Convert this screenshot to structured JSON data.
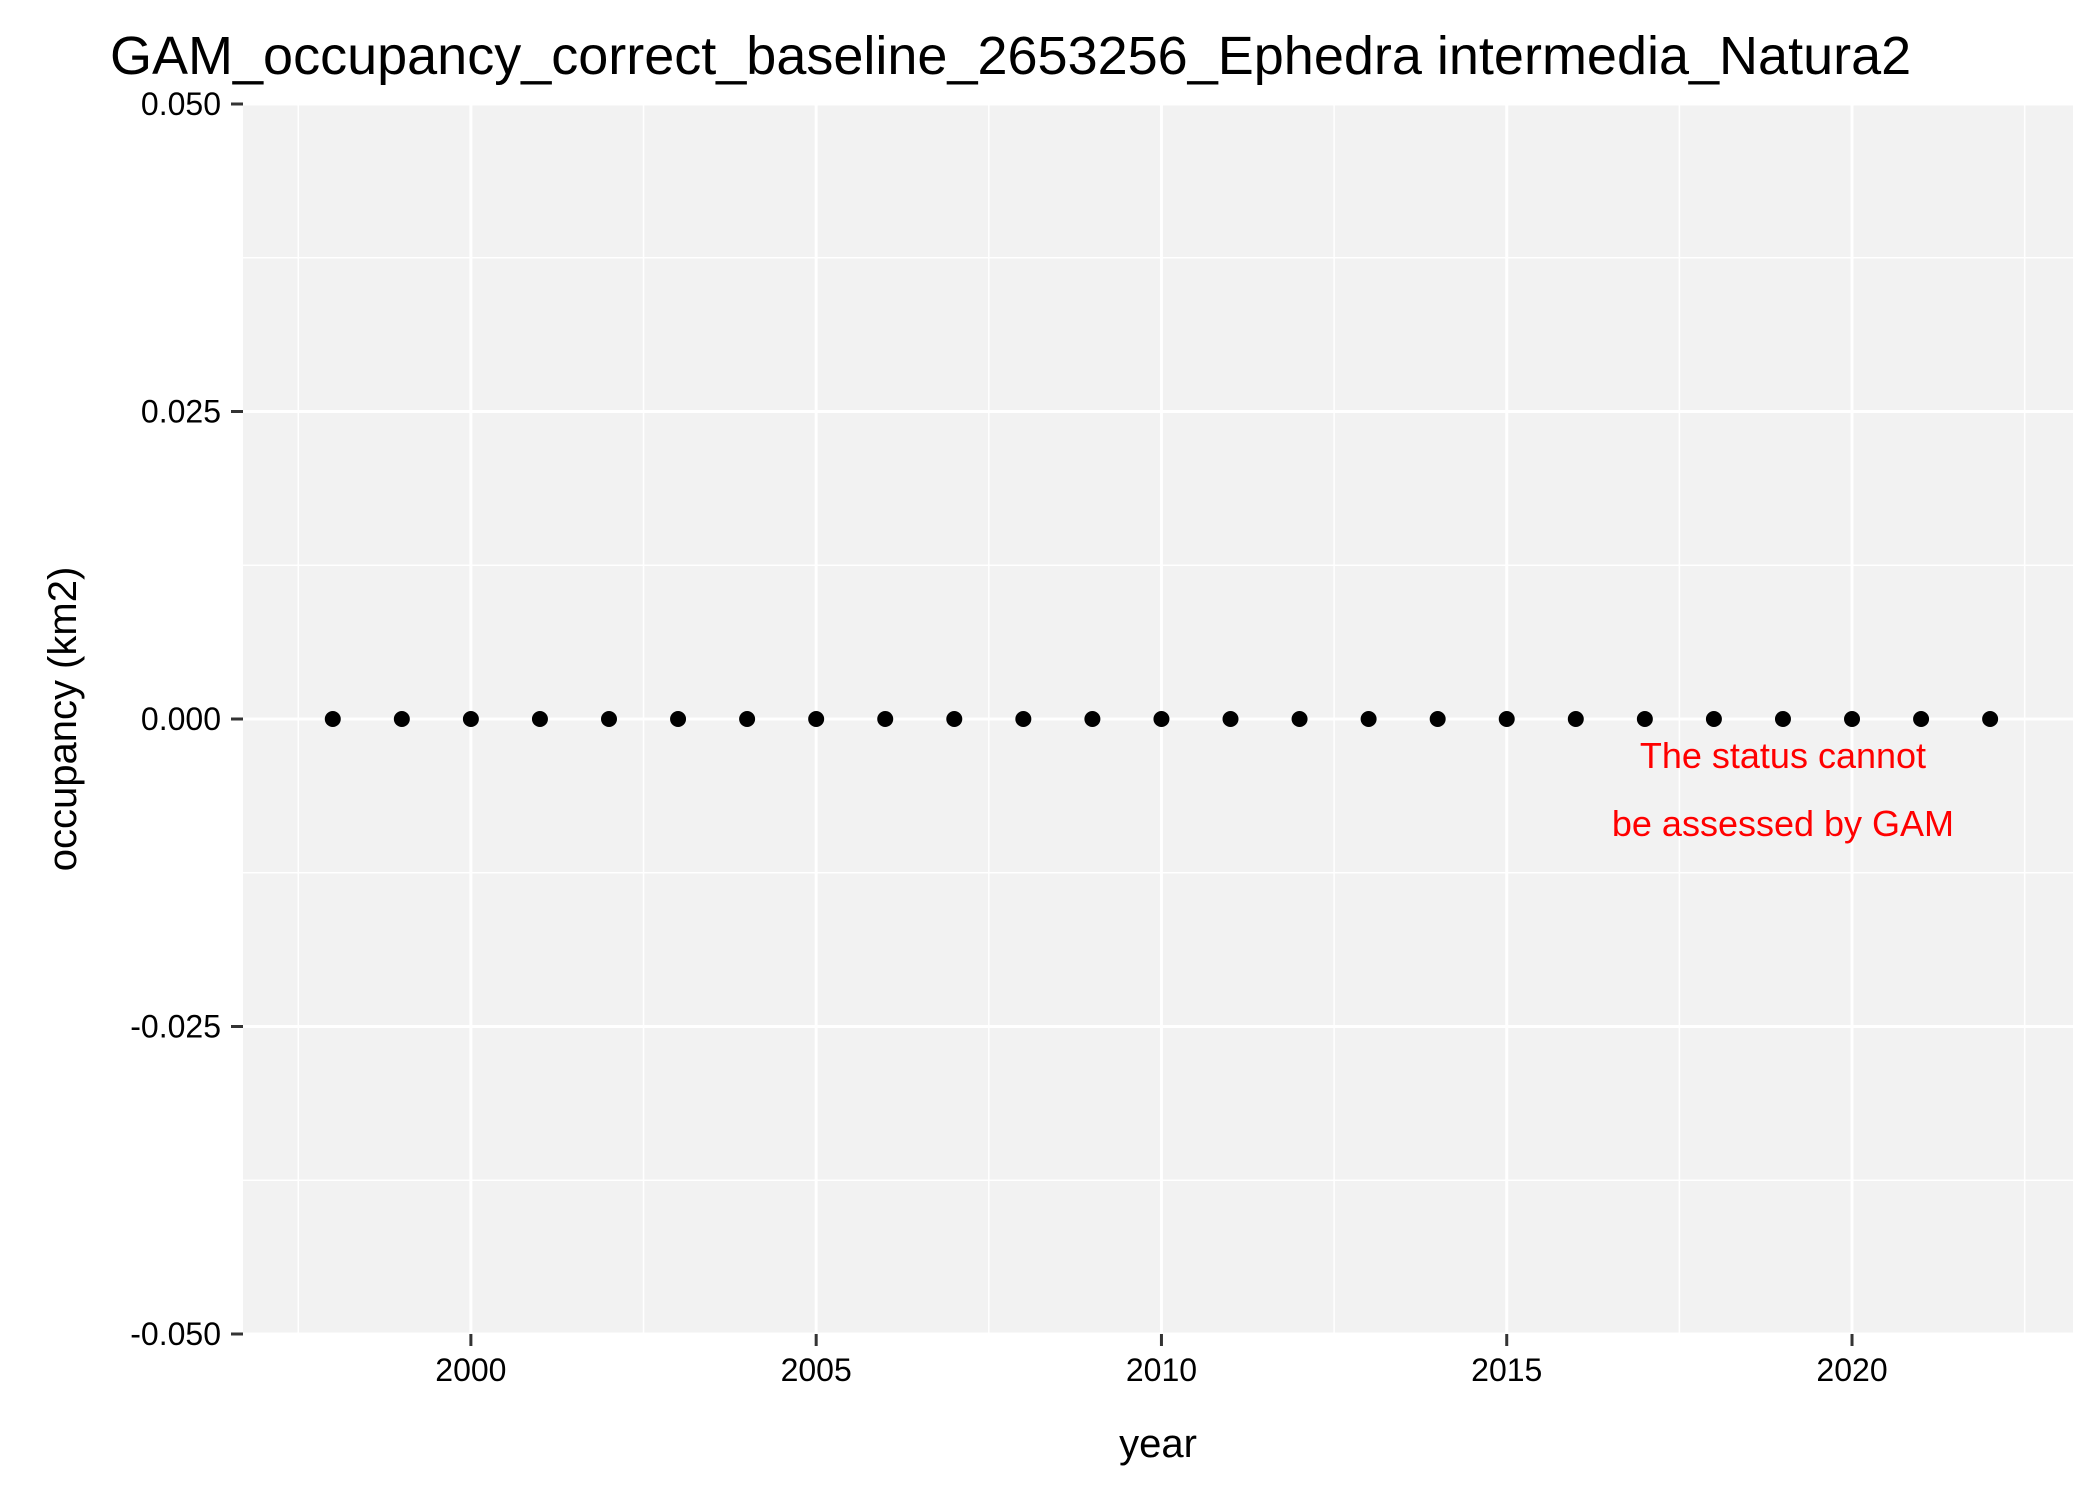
{
  "chart_data": {
    "type": "scatter",
    "title": "GAM_occupancy_correct_baseline_2653256_Ephedra intermedia_Natura2",
    "xlabel": "year",
    "ylabel": "occupancy (km2)",
    "xlim": [
      1996.7,
      2023.2
    ],
    "ylim": [
      -0.05,
      0.05
    ],
    "x_ticks": [
      2000,
      2005,
      2010,
      2015,
      2020
    ],
    "x_tick_labels": [
      "2000",
      "2005",
      "2010",
      "2015",
      "2020"
    ],
    "y_ticks": [
      -0.05,
      -0.025,
      0,
      0.025,
      0.05
    ],
    "y_tick_labels": [
      "-0.050",
      "-0.025",
      "0.000",
      "0.025",
      "0.050"
    ],
    "grid": true,
    "legend": "none",
    "series": [
      {
        "x": [
          1998,
          1999,
          2000,
          2001,
          2002,
          2003,
          2004,
          2005,
          2006,
          2007,
          2008,
          2009,
          2010,
          2011,
          2012,
          2013,
          2014,
          2015,
          2016,
          2017,
          2018,
          2019,
          2020,
          2021,
          2022
        ],
        "y": [
          0,
          0,
          0,
          0,
          0,
          0,
          0,
          0,
          0,
          0,
          0,
          0,
          0,
          0,
          0,
          0,
          0,
          0,
          0,
          0,
          0,
          0,
          0,
          0,
          0
        ]
      }
    ],
    "annotation": {
      "lines": [
        "The status cannot",
        "be assessed by GAM"
      ],
      "x": 2019,
      "y": -0.004,
      "color": "#ff0000"
    },
    "colors": {
      "panel_background": "#f2f2f2",
      "grid": "#ffffff",
      "points": "#000000",
      "annotation": "#ff0000"
    }
  }
}
